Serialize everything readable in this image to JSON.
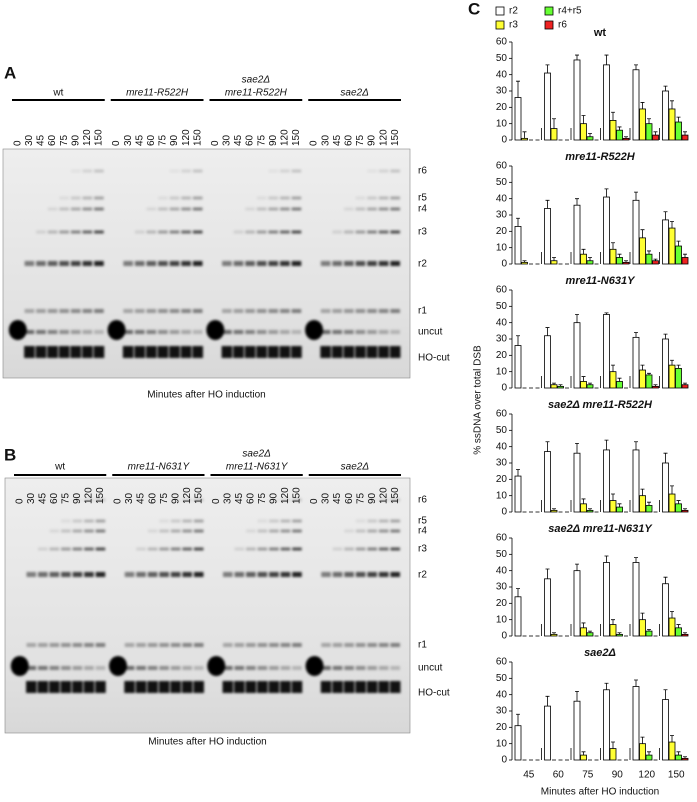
{
  "gel_panels": [
    {
      "label": "A",
      "caption": "Minutes after HO induction",
      "bands": [
        "r6",
        "r5",
        "r4",
        "r3",
        "r2",
        "r1",
        "uncut",
        "HO-cut"
      ],
      "strains": [
        {
          "name": [
            "wt"
          ],
          "lanes": [
            "0",
            "30",
            "45",
            "60",
            "75",
            "90",
            "120",
            "150"
          ]
        },
        {
          "name": [
            "mre11-R522H"
          ],
          "lanes": [
            "0",
            "30",
            "45",
            "60",
            "75",
            "90",
            "120",
            "150"
          ]
        },
        {
          "name": [
            "sae2Δ",
            "mre11-R522H"
          ],
          "lanes": [
            "0",
            "30",
            "45",
            "60",
            "75",
            "90",
            "120",
            "150"
          ]
        },
        {
          "name": [
            "sae2Δ"
          ],
          "lanes": [
            "0",
            "30",
            "45",
            "60",
            "75",
            "90",
            "120",
            "150"
          ]
        }
      ]
    },
    {
      "label": "B",
      "caption": "Minutes after HO induction",
      "bands": [
        "r6",
        "r5",
        "r4",
        "r3",
        "r2",
        "r1",
        "uncut",
        "HO-cut"
      ],
      "strains": [
        {
          "name": [
            "wt"
          ],
          "lanes": [
            "0",
            "30",
            "45",
            "60",
            "75",
            "90",
            "120",
            "150"
          ]
        },
        {
          "name": [
            "mre11-N631Y"
          ],
          "lanes": [
            "0",
            "30",
            "45",
            "60",
            "75",
            "90",
            "120",
            "150"
          ]
        },
        {
          "name": [
            "sae2Δ",
            "mre11-N631Y"
          ],
          "lanes": [
            "0",
            "30",
            "45",
            "60",
            "75",
            "90",
            "120",
            "150"
          ]
        },
        {
          "name": [
            "sae2Δ"
          ],
          "lanes": [
            "0",
            "30",
            "45",
            "60",
            "75",
            "90",
            "120",
            "150"
          ]
        }
      ]
    }
  ],
  "panel_c": {
    "label": "C",
    "ylabel": "% ssDNA over total DSB",
    "xlabel": "Minutes after HO induction",
    "categories": [
      "45",
      "60",
      "75",
      "90",
      "120",
      "150"
    ],
    "legend": [
      {
        "name": "r2",
        "color": "#ffffff"
      },
      {
        "name": "r3",
        "color": "#ffff33"
      },
      {
        "name": "r4+r5",
        "color": "#66ff33"
      },
      {
        "name": "r6",
        "color": "#ee2222"
      }
    ]
  },
  "chart_data": [
    {
      "type": "bar",
      "title": "wt",
      "ylim": [
        0,
        60
      ],
      "yticks": [
        0,
        10,
        20,
        30,
        40,
        50,
        60
      ],
      "series": [
        {
          "values": [
            26,
            41,
            49,
            46,
            43,
            30
          ],
          "errors": [
            10,
            5,
            3,
            6,
            3,
            3
          ]
        },
        {
          "values": [
            1,
            7,
            10,
            12,
            19,
            19
          ],
          "errors": [
            4,
            6,
            5,
            5,
            4,
            5
          ]
        },
        {
          "values": [
            0,
            0,
            2,
            6,
            10,
            11
          ],
          "errors": [
            0,
            0,
            2,
            2,
            3,
            3
          ]
        },
        {
          "values": [
            0,
            0,
            0,
            1,
            3,
            3
          ],
          "errors": [
            0,
            0,
            0,
            1,
            2,
            2
          ]
        }
      ]
    },
    {
      "type": "bar",
      "title": "mre11-R522H",
      "ylim": [
        0,
        60
      ],
      "yticks": [
        0,
        10,
        20,
        30,
        40,
        50,
        60
      ],
      "series": [
        {
          "values": [
            23,
            34,
            36,
            41,
            39,
            27
          ],
          "errors": [
            5,
            5,
            4,
            5,
            5,
            5
          ]
        },
        {
          "values": [
            1,
            2,
            6,
            9,
            16,
            22
          ],
          "errors": [
            1,
            2,
            3,
            4,
            5,
            4
          ]
        },
        {
          "values": [
            0,
            0,
            2,
            4,
            6,
            11
          ],
          "errors": [
            0,
            0,
            2,
            2,
            2,
            3
          ]
        },
        {
          "values": [
            0,
            0,
            0,
            1,
            2,
            4
          ],
          "errors": [
            0,
            0,
            0,
            1,
            1,
            2
          ]
        }
      ]
    },
    {
      "type": "bar",
      "title": "mre11-N631Y",
      "ylim": [
        0,
        60
      ],
      "yticks": [
        0,
        10,
        20,
        30,
        40,
        50,
        60
      ],
      "series": [
        {
          "values": [
            26,
            32,
            40,
            45,
            31,
            30
          ],
          "errors": [
            6,
            5,
            5,
            1,
            3,
            3
          ]
        },
        {
          "values": [
            0,
            2,
            4,
            10,
            11,
            14
          ],
          "errors": [
            0,
            1,
            3,
            4,
            3,
            3
          ]
        },
        {
          "values": [
            0,
            1,
            2,
            4,
            8,
            12
          ],
          "errors": [
            0,
            1,
            1,
            2,
            1,
            2
          ]
        },
        {
          "values": [
            0,
            0,
            0,
            0,
            1,
            2
          ],
          "errors": [
            0,
            0,
            0,
            0,
            1,
            1
          ]
        }
      ]
    },
    {
      "type": "bar",
      "title": "sae2Δ mre11-R522H",
      "ylim": [
        0,
        60
      ],
      "yticks": [
        0,
        10,
        20,
        30,
        40,
        50,
        60
      ],
      "series": [
        {
          "values": [
            22,
            37,
            36,
            38,
            38,
            30
          ],
          "errors": [
            4,
            6,
            6,
            6,
            5,
            6
          ]
        },
        {
          "values": [
            0,
            1,
            5,
            7,
            10,
            11
          ],
          "errors": [
            0,
            1,
            3,
            4,
            4,
            5
          ]
        },
        {
          "values": [
            0,
            0,
            1,
            3,
            4,
            5
          ],
          "errors": [
            0,
            0,
            1,
            2,
            2,
            2
          ]
        },
        {
          "values": [
            0,
            0,
            0,
            0,
            0,
            1
          ],
          "errors": [
            0,
            0,
            0,
            0,
            0,
            1
          ]
        }
      ]
    },
    {
      "type": "bar",
      "title": "sae2Δ mre11-N631Y",
      "ylim": [
        0,
        60
      ],
      "yticks": [
        0,
        10,
        20,
        30,
        40,
        50,
        60
      ],
      "series": [
        {
          "values": [
            24,
            35,
            40,
            45,
            45,
            32
          ],
          "errors": [
            5,
            6,
            4,
            4,
            3,
            4
          ]
        },
        {
          "values": [
            0,
            1,
            5,
            7,
            10,
            11
          ],
          "errors": [
            0,
            1,
            3,
            3,
            4,
            4
          ]
        },
        {
          "values": [
            0,
            0,
            2,
            1,
            3,
            5
          ],
          "errors": [
            0,
            0,
            1,
            1,
            1,
            2
          ]
        },
        {
          "values": [
            0,
            0,
            0,
            0,
            0,
            1
          ],
          "errors": [
            0,
            0,
            0,
            0,
            0,
            1
          ]
        }
      ]
    },
    {
      "type": "bar",
      "title": "sae2Δ",
      "ylim": [
        0,
        60
      ],
      "yticks": [
        0,
        10,
        20,
        30,
        40,
        50,
        60
      ],
      "series": [
        {
          "values": [
            21,
            33,
            36,
            43,
            45,
            37
          ],
          "errors": [
            7,
            6,
            6,
            4,
            4,
            6
          ]
        },
        {
          "values": [
            0,
            0,
            3,
            7,
            10,
            11
          ],
          "errors": [
            0,
            0,
            2,
            4,
            4,
            4
          ]
        },
        {
          "values": [
            0,
            0,
            0,
            0,
            3,
            3
          ],
          "errors": [
            0,
            0,
            0,
            0,
            2,
            2
          ]
        },
        {
          "values": [
            0,
            0,
            0,
            0,
            0,
            1
          ],
          "errors": [
            0,
            0,
            0,
            0,
            0,
            1
          ]
        }
      ]
    }
  ]
}
